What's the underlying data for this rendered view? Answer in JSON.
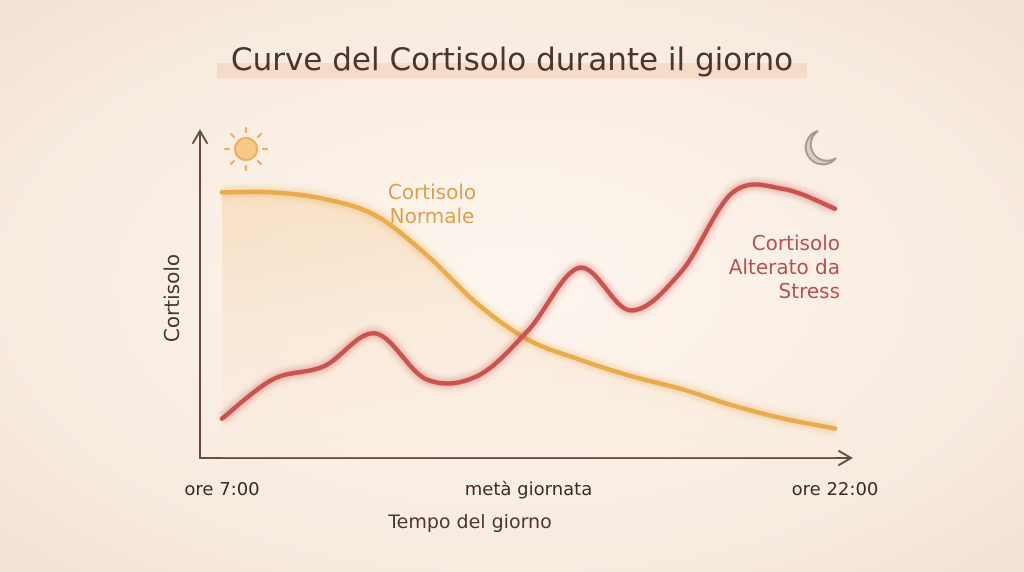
{
  "chart_data": {
    "type": "line",
    "title": "Curve del Cortisolo durante il giorno",
    "x_label": "Tempo del giorno",
    "y_label": "Cortisolo",
    "categories": [
      "ore 7:00",
      null,
      null,
      null,
      null,
      null,
      "metà giornata",
      null,
      null,
      null,
      null,
      null,
      "ore 22:00"
    ],
    "ylim": [
      0,
      100
    ],
    "series": [
      {
        "name": "Cortisolo Normale",
        "color": "#e8ab4e",
        "values": [
          81,
          81,
          79,
          74,
          62,
          47,
          36,
          30,
          25,
          21,
          16,
          12,
          9
        ]
      },
      {
        "name": "Cortisolo Alterato da Stress",
        "color": "#c9534f",
        "values": [
          12,
          24,
          28,
          38,
          24,
          25,
          39,
          58,
          45,
          57,
          81,
          82,
          76
        ]
      }
    ]
  }
}
